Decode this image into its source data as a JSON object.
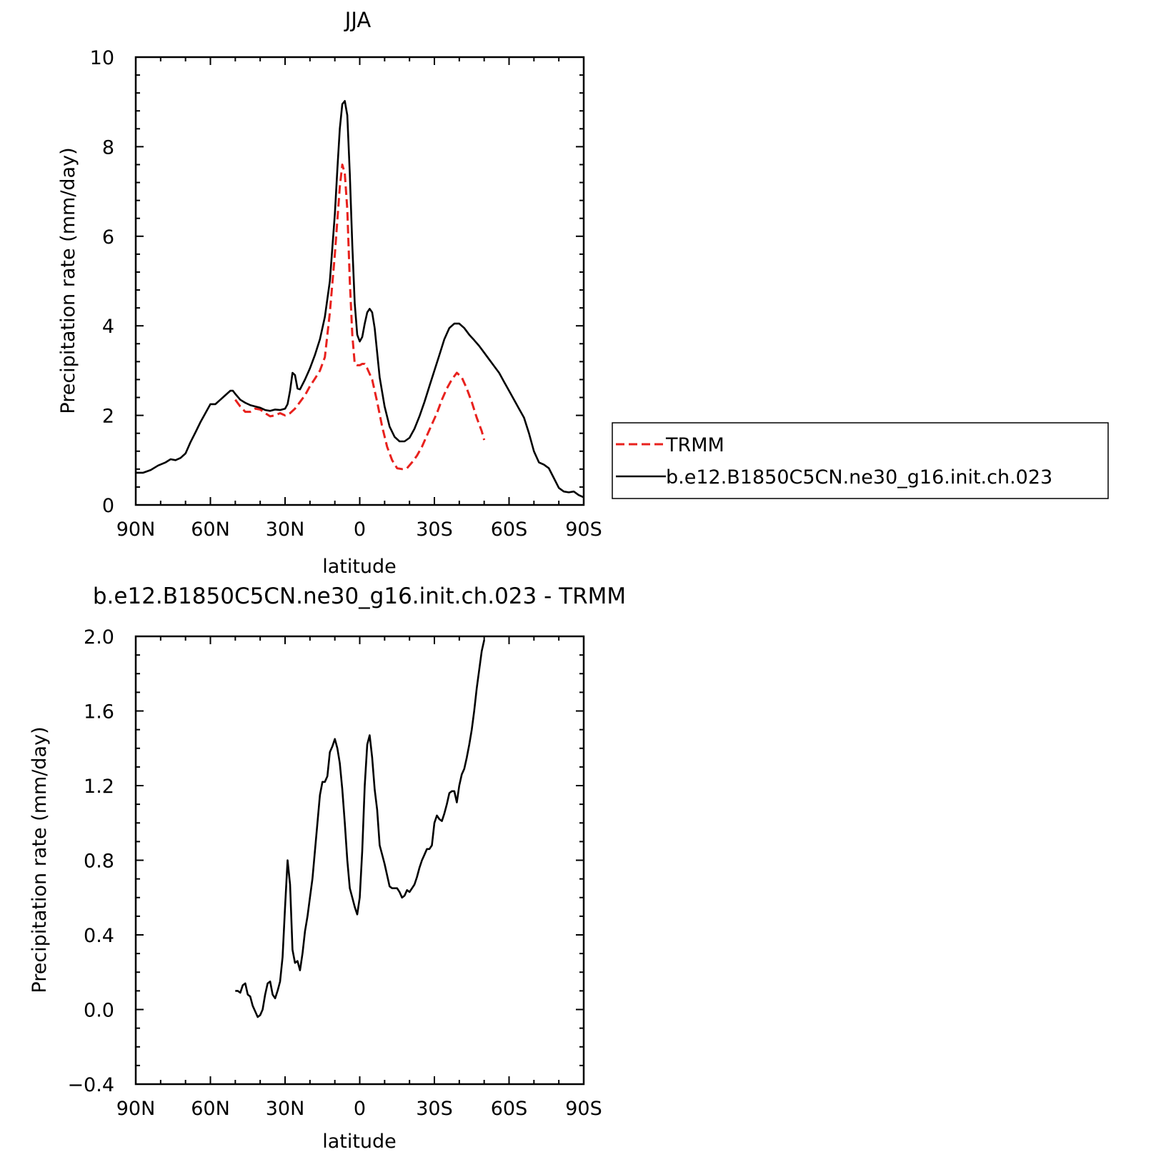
{
  "colors": {
    "model": "#000000",
    "obs": "#e8211d",
    "axis": "#000000"
  },
  "chart_data": [
    {
      "type": "line",
      "title": "JJA",
      "xlabel": "latitude",
      "ylabel": "Precipitation rate (mm/day)",
      "xlim": [
        90,
        -90
      ],
      "ylim": [
        0,
        10
      ],
      "x_ticks": [
        90,
        60,
        30,
        0,
        -30,
        -60,
        -90
      ],
      "x_tick_labels": [
        "90N",
        "60N",
        "30N",
        "0",
        "30S",
        "60S",
        "90S"
      ],
      "y_ticks": [
        0,
        2,
        4,
        6,
        8,
        10
      ],
      "y_tick_labels": [
        "0",
        "2",
        "4",
        "6",
        "8",
        "10"
      ],
      "legend_placement": "right",
      "series": [
        {
          "name": "TRMM",
          "style": "dashed",
          "color": "#e8211d",
          "points": [
            [
              50,
              2.35
            ],
            [
              48,
              2.2
            ],
            [
              46,
              2.08
            ],
            [
              44,
              2.08
            ],
            [
              42,
              2.15
            ],
            [
              40,
              2.13
            ],
            [
              38,
              2.05
            ],
            [
              36,
              1.98
            ],
            [
              34,
              2.0
            ],
            [
              32,
              2.05
            ],
            [
              30,
              2.0
            ],
            [
              28,
              2.05
            ],
            [
              26,
              2.15
            ],
            [
              24,
              2.3
            ],
            [
              22,
              2.45
            ],
            [
              20,
              2.65
            ],
            [
              18,
              2.82
            ],
            [
              16,
              3.0
            ],
            [
              14,
              3.3
            ],
            [
              12,
              4.3
            ],
            [
              10,
              5.6
            ],
            [
              8,
              7.1
            ],
            [
              7,
              7.6
            ],
            [
              6,
              7.4
            ],
            [
              5,
              6.6
            ],
            [
              4,
              5.0
            ],
            [
              3,
              3.8
            ],
            [
              2,
              3.15
            ],
            [
              1,
              3.12
            ],
            [
              0,
              3.12
            ],
            [
              -1,
              3.15
            ],
            [
              -2,
              3.15
            ],
            [
              -3,
              3.05
            ],
            [
              -5,
              2.8
            ],
            [
              -7,
              2.3
            ],
            [
              -9,
              1.75
            ],
            [
              -11,
              1.3
            ],
            [
              -13,
              1.0
            ],
            [
              -15,
              0.82
            ],
            [
              -17,
              0.8
            ],
            [
              -19,
              0.82
            ],
            [
              -21,
              0.95
            ],
            [
              -23,
              1.1
            ],
            [
              -25,
              1.3
            ],
            [
              -27,
              1.55
            ],
            [
              -29,
              1.8
            ],
            [
              -31,
              2.05
            ],
            [
              -33,
              2.35
            ],
            [
              -35,
              2.6
            ],
            [
              -37,
              2.8
            ],
            [
              -39,
              2.95
            ],
            [
              -41,
              2.85
            ],
            [
              -43,
              2.6
            ],
            [
              -45,
              2.3
            ],
            [
              -47,
              1.95
            ],
            [
              -49,
              1.65
            ],
            [
              -50,
              1.45
            ]
          ]
        },
        {
          "name": "b.e12.B1850C5CN.ne30_g16.init.ch.023",
          "style": "solid",
          "color": "#000000",
          "points": [
            [
              90,
              0.72
            ],
            [
              87,
              0.72
            ],
            [
              84,
              0.78
            ],
            [
              81,
              0.88
            ],
            [
              78,
              0.95
            ],
            [
              76,
              1.02
            ],
            [
              74,
              1.0
            ],
            [
              72,
              1.05
            ],
            [
              70,
              1.15
            ],
            [
              68,
              1.4
            ],
            [
              66,
              1.62
            ],
            [
              64,
              1.85
            ],
            [
              62,
              2.05
            ],
            [
              60,
              2.25
            ],
            [
              58,
              2.25
            ],
            [
              56,
              2.35
            ],
            [
              54,
              2.45
            ],
            [
              52,
              2.55
            ],
            [
              51,
              2.55
            ],
            [
              50,
              2.48
            ],
            [
              48,
              2.35
            ],
            [
              46,
              2.28
            ],
            [
              44,
              2.23
            ],
            [
              42,
              2.2
            ],
            [
              40,
              2.17
            ],
            [
              38,
              2.12
            ],
            [
              36,
              2.1
            ],
            [
              34,
              2.13
            ],
            [
              32,
              2.12
            ],
            [
              30,
              2.15
            ],
            [
              29,
              2.25
            ],
            [
              28,
              2.55
            ],
            [
              27,
              2.95
            ],
            [
              26,
              2.9
            ],
            [
              25,
              2.6
            ],
            [
              24,
              2.58
            ],
            [
              22,
              2.8
            ],
            [
              20,
              3.05
            ],
            [
              18,
              3.35
            ],
            [
              16,
              3.7
            ],
            [
              14,
              4.2
            ],
            [
              12,
              5.0
            ],
            [
              10,
              6.5
            ],
            [
              9,
              7.5
            ],
            [
              8,
              8.4
            ],
            [
              7,
              8.95
            ],
            [
              6,
              9.02
            ],
            [
              5,
              8.7
            ],
            [
              4,
              7.4
            ],
            [
              3,
              5.8
            ],
            [
              2,
              4.5
            ],
            [
              1,
              3.8
            ],
            [
              0,
              3.65
            ],
            [
              -1,
              3.75
            ],
            [
              -2,
              4.05
            ],
            [
              -3,
              4.3
            ],
            [
              -4,
              4.38
            ],
            [
              -5,
              4.3
            ],
            [
              -6,
              3.95
            ],
            [
              -7,
              3.4
            ],
            [
              -8,
              2.85
            ],
            [
              -10,
              2.2
            ],
            [
              -12,
              1.75
            ],
            [
              -14,
              1.52
            ],
            [
              -16,
              1.42
            ],
            [
              -18,
              1.42
            ],
            [
              -20,
              1.5
            ],
            [
              -22,
              1.7
            ],
            [
              -24,
              1.98
            ],
            [
              -26,
              2.3
            ],
            [
              -28,
              2.65
            ],
            [
              -30,
              3.0
            ],
            [
              -32,
              3.35
            ],
            [
              -34,
              3.7
            ],
            [
              -36,
              3.95
            ],
            [
              -38,
              4.05
            ],
            [
              -40,
              4.05
            ],
            [
              -42,
              3.95
            ],
            [
              -44,
              3.8
            ],
            [
              -46,
              3.68
            ],
            [
              -48,
              3.55
            ],
            [
              -50,
              3.4
            ],
            [
              -52,
              3.25
            ],
            [
              -54,
              3.1
            ],
            [
              -56,
              2.95
            ],
            [
              -58,
              2.75
            ],
            [
              -60,
              2.55
            ],
            [
              -62,
              2.35
            ],
            [
              -64,
              2.15
            ],
            [
              -66,
              1.95
            ],
            [
              -68,
              1.6
            ],
            [
              -70,
              1.2
            ],
            [
              -72,
              0.95
            ],
            [
              -74,
              0.9
            ],
            [
              -76,
              0.82
            ],
            [
              -78,
              0.6
            ],
            [
              -80,
              0.38
            ],
            [
              -82,
              0.3
            ],
            [
              -84,
              0.28
            ],
            [
              -86,
              0.3
            ],
            [
              -88,
              0.22
            ],
            [
              -90,
              0.17
            ]
          ]
        }
      ]
    },
    {
      "type": "line",
      "title": "b.e12.B1850C5CN.ne30_g16.init.ch.023 - TRMM",
      "xlabel": "latitude",
      "ylabel": "Precipitation rate (mm/day)",
      "xlim": [
        90,
        -90
      ],
      "ylim": [
        -0.4,
        2.0
      ],
      "x_ticks": [
        90,
        60,
        30,
        0,
        -30,
        -60,
        -90
      ],
      "x_tick_labels": [
        "90N",
        "60N",
        "30N",
        "0",
        "30S",
        "60S",
        "90S"
      ],
      "y_ticks": [
        -0.4,
        0.0,
        0.4,
        0.8,
        1.2,
        1.6,
        2.0
      ],
      "y_tick_labels": [
        "−0.4",
        "0.0",
        "0.4",
        "0.8",
        "1.2",
        "1.6",
        "2.0"
      ],
      "series": [
        {
          "style": "solid",
          "color": "#000000",
          "points": [
            [
              50,
              0.1
            ],
            [
              49,
              0.1
            ],
            [
              48,
              0.09
            ],
            [
              47,
              0.13
            ],
            [
              46,
              0.14
            ],
            [
              45,
              0.08
            ],
            [
              44,
              0.07
            ],
            [
              43,
              0.02
            ],
            [
              42,
              -0.01
            ],
            [
              41,
              -0.04
            ],
            [
              40,
              -0.03
            ],
            [
              39,
              0.0
            ],
            [
              38,
              0.08
            ],
            [
              37,
              0.14
            ],
            [
              36,
              0.15
            ],
            [
              35,
              0.08
            ],
            [
              34,
              0.06
            ],
            [
              33,
              0.1
            ],
            [
              32,
              0.15
            ],
            [
              31,
              0.28
            ],
            [
              30,
              0.55
            ],
            [
              29,
              0.8
            ],
            [
              28,
              0.67
            ],
            [
              27,
              0.32
            ],
            [
              26,
              0.25
            ],
            [
              25,
              0.26
            ],
            [
              24,
              0.21
            ],
            [
              23,
              0.3
            ],
            [
              22,
              0.42
            ],
            [
              21,
              0.5
            ],
            [
              20,
              0.6
            ],
            [
              19,
              0.7
            ],
            [
              18,
              0.85
            ],
            [
              17,
              1.0
            ],
            [
              16,
              1.15
            ],
            [
              15,
              1.22
            ],
            [
              14,
              1.22
            ],
            [
              13,
              1.25
            ],
            [
              12,
              1.38
            ],
            [
              11,
              1.41
            ],
            [
              10,
              1.45
            ],
            [
              9,
              1.4
            ],
            [
              8,
              1.32
            ],
            [
              7,
              1.18
            ],
            [
              6,
              1.0
            ],
            [
              5,
              0.8
            ],
            [
              4,
              0.65
            ],
            [
              3,
              0.6
            ],
            [
              2,
              0.55
            ],
            [
              1,
              0.51
            ],
            [
              0,
              0.6
            ],
            [
              -1,
              0.85
            ],
            [
              -2,
              1.2
            ],
            [
              -3,
              1.42
            ],
            [
              -4,
              1.47
            ],
            [
              -5,
              1.35
            ],
            [
              -6,
              1.18
            ],
            [
              -7,
              1.07
            ],
            [
              -8,
              0.88
            ],
            [
              -9,
              0.83
            ],
            [
              -10,
              0.78
            ],
            [
              -11,
              0.72
            ],
            [
              -12,
              0.66
            ],
            [
              -13,
              0.65
            ],
            [
              -14,
              0.65
            ],
            [
              -15,
              0.65
            ],
            [
              -16,
              0.63
            ],
            [
              -17,
              0.6
            ],
            [
              -18,
              0.61
            ],
            [
              -19,
              0.64
            ],
            [
              -20,
              0.63
            ],
            [
              -21,
              0.65
            ],
            [
              -22,
              0.67
            ],
            [
              -23,
              0.71
            ],
            [
              -24,
              0.76
            ],
            [
              -25,
              0.8
            ],
            [
              -26,
              0.83
            ],
            [
              -27,
              0.86
            ],
            [
              -28,
              0.86
            ],
            [
              -29,
              0.88
            ],
            [
              -30,
              1.0
            ],
            [
              -31,
              1.04
            ],
            [
              -32,
              1.02
            ],
            [
              -33,
              1.01
            ],
            [
              -34,
              1.05
            ],
            [
              -35,
              1.1
            ],
            [
              -36,
              1.16
            ],
            [
              -37,
              1.17
            ],
            [
              -38,
              1.17
            ],
            [
              -39,
              1.11
            ],
            [
              -40,
              1.2
            ],
            [
              -41,
              1.26
            ],
            [
              -42,
              1.29
            ],
            [
              -43,
              1.35
            ],
            [
              -44,
              1.42
            ],
            [
              -45,
              1.5
            ],
            [
              -46,
              1.6
            ],
            [
              -47,
              1.72
            ],
            [
              -48,
              1.82
            ],
            [
              -49,
              1.92
            ],
            [
              -50,
              1.98
            ]
          ]
        }
      ]
    }
  ]
}
